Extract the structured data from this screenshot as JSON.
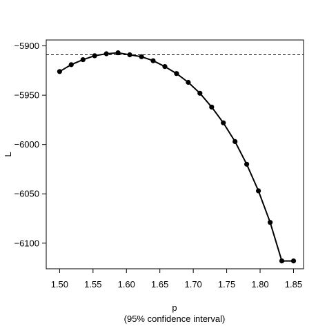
{
  "chart_data": {
    "type": "line",
    "xlabel": "p",
    "xlabel_sub": "(95% confidence interval)",
    "ylabel": "L",
    "xlim": [
      1.48,
      1.865
    ],
    "ylim": [
      -6126,
      -5894
    ],
    "x_ticks": [
      1.5,
      1.55,
      1.6,
      1.65,
      1.7,
      1.75,
      1.8,
      1.85
    ],
    "x_tick_labels": [
      "1.50",
      "1.55",
      "1.60",
      "1.65",
      "1.70",
      "1.75",
      "1.80",
      "1.85"
    ],
    "y_ticks": [
      -5900,
      -5950,
      -6000,
      -6050,
      -6100
    ],
    "y_tick_labels": [
      "−5900",
      "−5950",
      "−6000",
      "−6050",
      "−6100"
    ],
    "grid": false,
    "series": [
      {
        "x": [
          1.5,
          1.5175,
          1.535,
          1.5525,
          1.57,
          1.5875,
          1.605,
          1.6225,
          1.64,
          1.6575,
          1.675,
          1.6925,
          1.71,
          1.7275,
          1.745,
          1.7625,
          1.78,
          1.7975,
          1.815,
          1.8325,
          1.85
        ],
        "y": [
          -5926,
          -5919,
          -5914,
          -5910,
          -5908,
          -5907,
          -5909,
          -5911,
          -5915,
          -5921,
          -5928,
          -5937,
          -5948,
          -5962,
          -5978,
          -5997,
          -6020,
          -6047,
          -6079,
          -6118,
          -6118
        ],
        "marker": "filled-circle",
        "color": "#000000"
      }
    ],
    "reference_lines": [
      {
        "orientation": "horizontal",
        "y": -5909,
        "style": "dashed",
        "color": "#000000"
      }
    ]
  }
}
